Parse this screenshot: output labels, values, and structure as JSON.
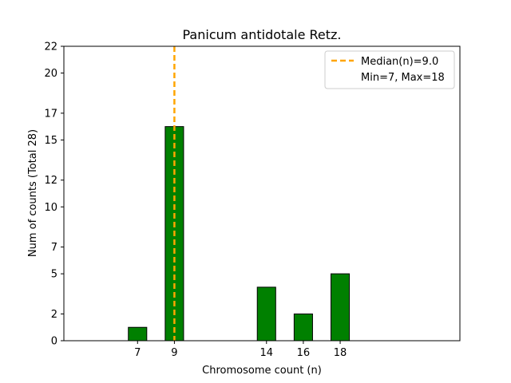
{
  "chart_data": {
    "type": "bar",
    "title": "Panicum antidotale Retz.",
    "xlabel": "Chromosome count (n)",
    "ylabel": "Num of counts      (Total 28)",
    "xlim": [
      3,
      24.5
    ],
    "ylim": [
      0,
      22
    ],
    "x_ticks": [
      7,
      9,
      14,
      16,
      18
    ],
    "y_ticks": [
      0,
      2,
      5,
      7,
      10,
      12,
      15,
      17,
      20,
      22
    ],
    "bars": [
      {
        "x": 7,
        "value": 1
      },
      {
        "x": 9,
        "value": 16
      },
      {
        "x": 14,
        "value": 4
      },
      {
        "x": 16,
        "value": 2
      },
      {
        "x": 18,
        "value": 5
      }
    ],
    "bar_color": "#008000",
    "median": 9.0,
    "median_color": "#FFA500",
    "legend": {
      "placement": "top-right",
      "entries": [
        "Median(n)=9.0",
        "Min=7, Max=18"
      ]
    },
    "grid": false
  }
}
